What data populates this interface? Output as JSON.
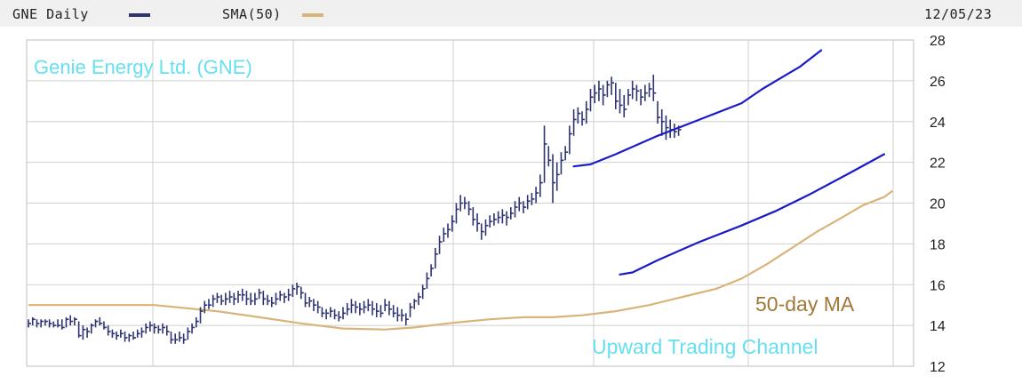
{
  "header": {
    "series_label": "GNE Daily",
    "sma_label": "SMA(50)",
    "date": "12/05/23"
  },
  "colors": {
    "price": "#2e3370",
    "sma": "#d9b47a",
    "channel": "#1a1ac8",
    "title_annotation": "#66e0f0",
    "ma_annotation": "#a07838",
    "grid": "#cfcfcf"
  },
  "chart_data": {
    "type": "line",
    "title": "Genie Energy Ltd. (GNE)",
    "xlabel": "",
    "ylabel": "",
    "ylim": [
      12,
      28
    ],
    "yticks": [
      12,
      14,
      16,
      18,
      20,
      22,
      24,
      26,
      28
    ],
    "grid": true,
    "legend_position": "top",
    "annotations": [
      "50-day MA",
      "Upward Trading Channel"
    ],
    "series": [
      {
        "name": "GNE Daily",
        "style": "ohlc-bars",
        "points_hlc": [
          [
            14.3,
            13.9,
            14.1
          ],
          [
            14.4,
            14.0,
            14.3
          ],
          [
            14.3,
            13.9,
            14.1
          ],
          [
            14.3,
            13.9,
            14.2
          ],
          [
            14.3,
            14.0,
            14.2
          ],
          [
            14.3,
            13.9,
            14.1
          ],
          [
            14.2,
            13.9,
            14.0
          ],
          [
            14.3,
            13.9,
            14.0
          ],
          [
            14.3,
            13.8,
            13.9
          ],
          [
            14.4,
            13.9,
            14.3
          ],
          [
            14.5,
            14.0,
            14.2
          ],
          [
            14.4,
            14.0,
            14.3
          ],
          [
            14.2,
            13.4,
            13.5
          ],
          [
            14.0,
            13.3,
            13.8
          ],
          [
            13.9,
            13.4,
            13.7
          ],
          [
            14.1,
            13.6,
            14.0
          ],
          [
            14.3,
            13.9,
            14.2
          ],
          [
            14.4,
            14.0,
            14.1
          ],
          [
            14.2,
            13.8,
            13.9
          ],
          [
            14.0,
            13.5,
            13.7
          ],
          [
            13.8,
            13.4,
            13.6
          ],
          [
            13.7,
            13.3,
            13.5
          ],
          [
            13.8,
            13.4,
            13.6
          ],
          [
            13.7,
            13.2,
            13.4
          ],
          [
            13.6,
            13.2,
            13.5
          ],
          [
            13.7,
            13.3,
            13.4
          ],
          [
            13.8,
            13.4,
            13.6
          ],
          [
            13.9,
            13.4,
            13.7
          ],
          [
            14.1,
            13.6,
            13.9
          ],
          [
            14.2,
            13.7,
            14.0
          ],
          [
            14.1,
            13.6,
            13.9
          ],
          [
            14.0,
            13.6,
            13.8
          ],
          [
            14.1,
            13.6,
            13.9
          ],
          [
            14.0,
            13.5,
            13.7
          ],
          [
            13.7,
            13.1,
            13.3
          ],
          [
            13.6,
            13.1,
            13.3
          ],
          [
            13.7,
            13.2,
            13.4
          ],
          [
            13.6,
            13.1,
            13.3
          ],
          [
            13.9,
            13.3,
            13.7
          ],
          [
            14.1,
            13.6,
            13.9
          ],
          [
            14.4,
            13.9,
            14.2
          ],
          [
            14.9,
            14.1,
            14.7
          ],
          [
            15.2,
            14.6,
            15.0
          ],
          [
            15.3,
            14.8,
            15.0
          ],
          [
            15.5,
            14.9,
            15.3
          ],
          [
            15.6,
            15.1,
            15.4
          ],
          [
            15.5,
            15.0,
            15.2
          ],
          [
            15.6,
            15.0,
            15.3
          ],
          [
            15.7,
            15.1,
            15.4
          ],
          [
            15.6,
            15.0,
            15.3
          ],
          [
            15.7,
            15.1,
            15.5
          ],
          [
            15.8,
            15.2,
            15.5
          ],
          [
            15.7,
            15.0,
            15.3
          ],
          [
            15.6,
            15.0,
            15.2
          ],
          [
            15.6,
            15.0,
            15.3
          ],
          [
            15.8,
            15.3,
            15.6
          ],
          [
            15.7,
            15.0,
            15.3
          ],
          [
            15.5,
            15.0,
            15.2
          ],
          [
            15.4,
            14.9,
            15.1
          ],
          [
            15.6,
            15.0,
            15.3
          ],
          [
            15.7,
            15.2,
            15.5
          ],
          [
            15.6,
            15.1,
            15.4
          ],
          [
            15.8,
            15.2,
            15.5
          ],
          [
            16.0,
            15.4,
            15.8
          ],
          [
            16.1,
            15.5,
            15.9
          ],
          [
            15.9,
            15.3,
            15.6
          ],
          [
            15.6,
            14.9,
            15.1
          ],
          [
            15.4,
            14.9,
            15.2
          ],
          [
            15.3,
            14.7,
            15.0
          ],
          [
            15.2,
            14.6,
            14.9
          ],
          [
            14.9,
            14.4,
            14.6
          ],
          [
            14.8,
            14.3,
            14.6
          ],
          [
            14.9,
            14.4,
            14.7
          ],
          [
            14.8,
            14.3,
            14.5
          ],
          [
            14.7,
            14.2,
            14.4
          ],
          [
            14.9,
            14.3,
            14.6
          ],
          [
            15.1,
            14.5,
            14.8
          ],
          [
            15.3,
            14.6,
            15.0
          ],
          [
            15.2,
            14.6,
            14.9
          ],
          [
            15.1,
            14.5,
            14.8
          ],
          [
            15.2,
            14.6,
            14.9
          ],
          [
            15.3,
            14.7,
            15.0
          ],
          [
            15.2,
            14.5,
            14.8
          ],
          [
            15.1,
            14.4,
            14.7
          ],
          [
            15.0,
            14.4,
            14.6
          ],
          [
            15.3,
            14.7,
            15.0
          ],
          [
            15.2,
            14.5,
            14.8
          ],
          [
            15.0,
            14.4,
            14.6
          ],
          [
            14.9,
            14.2,
            14.5
          ],
          [
            14.8,
            14.2,
            14.5
          ],
          [
            14.6,
            14.0,
            14.3
          ],
          [
            15.1,
            14.4,
            14.9
          ],
          [
            15.3,
            14.8,
            15.2
          ],
          [
            15.6,
            15.0,
            15.4
          ],
          [
            16.0,
            15.3,
            15.8
          ],
          [
            16.6,
            15.8,
            16.3
          ],
          [
            17.0,
            16.4,
            16.8
          ],
          [
            17.8,
            16.8,
            17.5
          ],
          [
            18.4,
            17.5,
            18.1
          ],
          [
            18.8,
            18.1,
            18.5
          ],
          [
            19.0,
            18.3,
            18.7
          ],
          [
            19.4,
            18.6,
            19.1
          ],
          [
            20.0,
            19.0,
            19.7
          ],
          [
            20.4,
            19.6,
            20.0
          ],
          [
            20.3,
            19.7,
            20.0
          ],
          [
            20.1,
            19.4,
            19.7
          ],
          [
            19.8,
            18.9,
            19.2
          ],
          [
            19.5,
            18.6,
            19.0
          ],
          [
            19.0,
            18.2,
            18.6
          ],
          [
            19.2,
            18.4,
            18.9
          ],
          [
            19.4,
            18.8,
            19.1
          ],
          [
            19.5,
            18.9,
            19.2
          ],
          [
            19.6,
            19.0,
            19.3
          ],
          [
            19.7,
            19.0,
            19.4
          ],
          [
            19.6,
            18.9,
            19.3
          ],
          [
            19.8,
            19.2,
            19.5
          ],
          [
            20.1,
            19.3,
            19.8
          ],
          [
            20.3,
            19.6,
            20.0
          ],
          [
            20.1,
            19.5,
            19.8
          ],
          [
            20.4,
            19.7,
            20.1
          ],
          [
            20.5,
            19.9,
            20.2
          ],
          [
            20.8,
            20.0,
            20.5
          ],
          [
            21.4,
            20.3,
            21.0
          ],
          [
            23.8,
            21.0,
            22.9
          ],
          [
            22.8,
            21.8,
            22.1
          ],
          [
            22.4,
            20.0,
            21.0
          ],
          [
            22.0,
            20.6,
            21.4
          ],
          [
            22.5,
            21.4,
            22.1
          ],
          [
            22.8,
            22.1,
            22.5
          ],
          [
            23.8,
            22.4,
            23.4
          ],
          [
            24.6,
            23.3,
            24.1
          ],
          [
            24.7,
            23.9,
            24.4
          ],
          [
            24.5,
            23.8,
            24.1
          ],
          [
            25.0,
            23.9,
            24.6
          ],
          [
            25.6,
            24.5,
            25.2
          ],
          [
            25.8,
            24.9,
            25.4
          ],
          [
            26.0,
            25.0,
            25.6
          ],
          [
            25.8,
            24.8,
            25.3
          ],
          [
            26.0,
            25.2,
            25.8
          ],
          [
            26.2,
            25.3,
            25.9
          ],
          [
            25.9,
            24.6,
            25.0
          ],
          [
            25.6,
            24.4,
            24.8
          ],
          [
            25.3,
            24.2,
            24.6
          ],
          [
            25.6,
            24.8,
            25.3
          ],
          [
            26.0,
            25.1,
            25.6
          ],
          [
            25.8,
            25.0,
            25.5
          ],
          [
            25.6,
            24.8,
            25.2
          ],
          [
            25.8,
            25.0,
            25.4
          ],
          [
            25.9,
            25.2,
            25.6
          ],
          [
            26.3,
            25.0,
            25.4
          ],
          [
            25.0,
            23.9,
            24.2
          ],
          [
            24.6,
            23.3,
            24.0
          ],
          [
            24.3,
            23.1,
            23.7
          ],
          [
            24.1,
            23.2,
            23.6
          ],
          [
            23.9,
            23.2,
            23.5
          ],
          [
            23.8,
            23.3,
            23.6
          ]
        ]
      },
      {
        "name": "SMA(50)",
        "style": "line",
        "points": [
          [
            0,
            15.0
          ],
          [
            30,
            15.0
          ],
          [
            45,
            14.7
          ],
          [
            55,
            14.4
          ],
          [
            65,
            14.1
          ],
          [
            75,
            13.85
          ],
          [
            85,
            13.8
          ],
          [
            92,
            13.9
          ],
          [
            100,
            14.1
          ],
          [
            110,
            14.3
          ],
          [
            118,
            14.4
          ],
          [
            125,
            14.4
          ],
          [
            132,
            14.5
          ],
          [
            140,
            14.7
          ],
          [
            148,
            15.0
          ],
          [
            156,
            15.4
          ],
          [
            164,
            15.8
          ],
          [
            170,
            16.3
          ],
          [
            176,
            17.0
          ],
          [
            182,
            17.8
          ],
          [
            188,
            18.6
          ],
          [
            194,
            19.3
          ],
          [
            199,
            19.9
          ],
          [
            204,
            20.3
          ],
          [
            206,
            20.6
          ]
        ]
      }
    ],
    "channel_lines": {
      "upper": [
        [
          130,
          21.8
        ],
        [
          134,
          21.9
        ],
        [
          140,
          22.4
        ],
        [
          150,
          23.3
        ],
        [
          160,
          24.1
        ],
        [
          170,
          24.9
        ],
        [
          175,
          25.6
        ],
        [
          184,
          26.7
        ],
        [
          189,
          27.5
        ]
      ],
      "lower": [
        [
          141,
          16.5
        ],
        [
          144,
          16.6
        ],
        [
          150,
          17.2
        ],
        [
          160,
          18.1
        ],
        [
          170,
          18.9
        ],
        [
          178,
          19.6
        ],
        [
          186,
          20.4
        ],
        [
          196,
          21.5
        ],
        [
          204,
          22.4
        ]
      ]
    }
  }
}
